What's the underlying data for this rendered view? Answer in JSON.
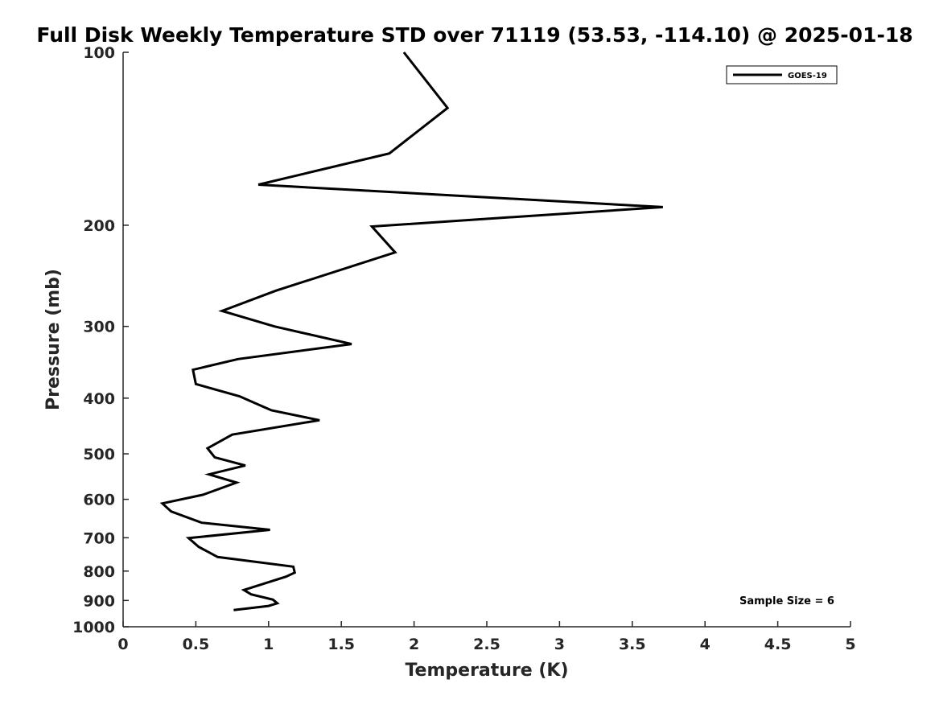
{
  "chart_data": {
    "type": "line",
    "title": "Full Disk Weekly Temperature STD over 71119 (53.53, -114.10) @ 2025-01-18",
    "xlabel": "Temperature (K)",
    "ylabel": "Pressure (mb)",
    "xlim": [
      0,
      5
    ],
    "ylim": [
      100,
      1000
    ],
    "y_scale": "log",
    "y_reversed": true,
    "x_ticks": [
      0,
      0.5,
      1,
      1.5,
      2,
      2.5,
      3,
      3.5,
      4,
      4.5,
      5
    ],
    "x_tick_labels": [
      "0",
      "0.5",
      "1",
      "1.5",
      "2",
      "2.5",
      "3",
      "3.5",
      "4",
      "4.5",
      "5"
    ],
    "y_ticks": [
      100,
      200,
      300,
      400,
      500,
      600,
      700,
      800,
      900,
      1000
    ],
    "y_tick_labels": [
      "100",
      "200",
      "300",
      "400",
      "500",
      "600",
      "700",
      "800",
      "900",
      "1000"
    ],
    "grid": false,
    "legend_position": "top-right",
    "annotation": "Sample Size = 6",
    "series": [
      {
        "name": "GOES-19",
        "color": "#000000",
        "points": [
          [
            1.93,
            100
          ],
          [
            2.23,
            125
          ],
          [
            1.83,
            150
          ],
          [
            0.93,
            170
          ],
          [
            3.71,
            186
          ],
          [
            1.71,
            201
          ],
          [
            1.87,
            223
          ],
          [
            1.05,
            260
          ],
          [
            0.68,
            282
          ],
          [
            1.04,
            300
          ],
          [
            1.57,
            322
          ],
          [
            0.79,
            342
          ],
          [
            0.48,
            357
          ],
          [
            0.5,
            378
          ],
          [
            0.8,
            397
          ],
          [
            1.02,
            420
          ],
          [
            1.35,
            437
          ],
          [
            0.75,
            463
          ],
          [
            0.58,
            489
          ],
          [
            0.63,
            507
          ],
          [
            0.84,
            524
          ],
          [
            0.59,
            543
          ],
          [
            0.78,
            561
          ],
          [
            0.55,
            589
          ],
          [
            0.27,
            610
          ],
          [
            0.33,
            630
          ],
          [
            0.54,
            659
          ],
          [
            1.01,
            678
          ],
          [
            0.45,
            701
          ],
          [
            0.52,
            726
          ],
          [
            0.65,
            756
          ],
          [
            1.17,
            786
          ],
          [
            1.18,
            805
          ],
          [
            1.12,
            818
          ],
          [
            0.83,
            863
          ],
          [
            0.88,
            878
          ],
          [
            1.03,
            897
          ],
          [
            1.06,
            910
          ],
          [
            1.0,
            920
          ],
          [
            0.76,
            935
          ]
        ]
      }
    ]
  }
}
